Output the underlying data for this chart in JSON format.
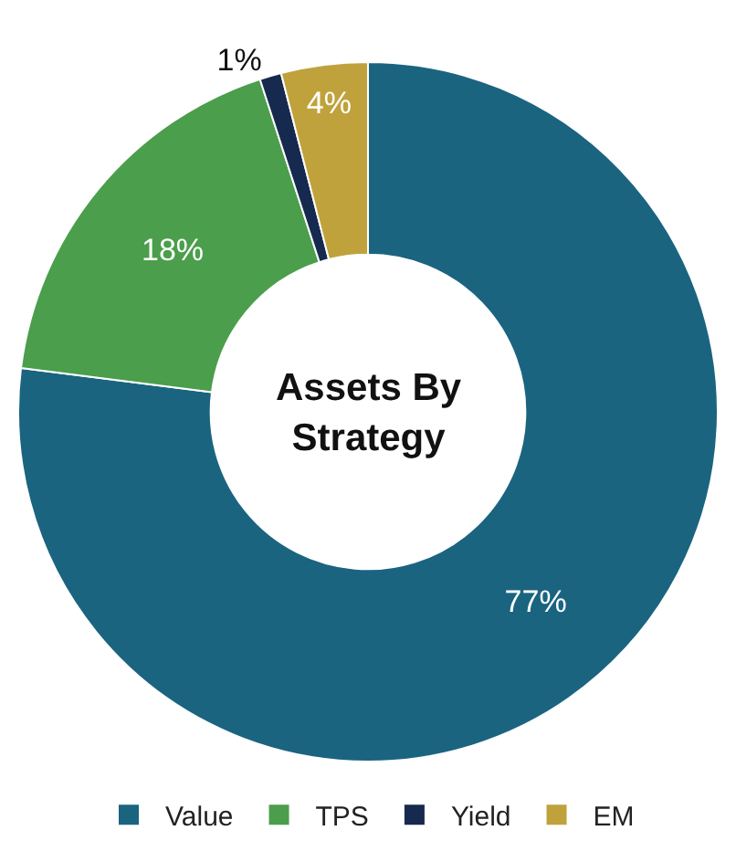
{
  "chart_data": {
    "type": "donut",
    "title": "Assets By Strategy",
    "categories": [
      "Value",
      "TPS",
      "Yield",
      "EM"
    ],
    "values": [
      77,
      18,
      1,
      4
    ],
    "colors": [
      "#1a6480",
      "#4b9e4b",
      "#152a4e",
      "#c0a23c"
    ],
    "value_labels": [
      "77%",
      "18%",
      "1%",
      "4%"
    ],
    "legend": "bottom"
  }
}
